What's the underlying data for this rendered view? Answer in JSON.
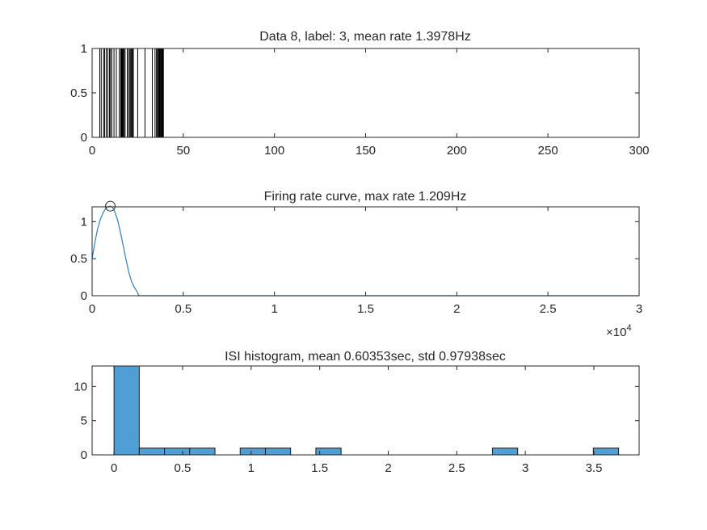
{
  "chart_data": [
    {
      "type": "raster",
      "title": "Data 8, label: 3, mean rate 1.3978Hz",
      "xlim": [
        0,
        300
      ],
      "ylim": [
        0,
        1
      ],
      "xticks": [
        0,
        50,
        100,
        150,
        200,
        250,
        300
      ],
      "xtick_labels": [
        "0",
        "50",
        "100",
        "150",
        "200",
        "250",
        "300"
      ],
      "yticks": [
        0,
        0.5,
        1
      ],
      "ytick_labels": [
        "0",
        "0.5",
        "1"
      ],
      "spike_times": [
        4.2,
        5.0,
        6.3,
        6.9,
        7.8,
        8.6,
        9.5,
        10.1,
        10.8,
        12.0,
        13.3,
        14.9,
        15.7,
        15.9,
        16.1,
        16.3,
        16.6,
        16.8,
        17.0,
        17.5,
        18.1,
        19.3,
        20.0,
        20.7,
        21.2,
        21.6,
        22.1,
        22.3,
        22.6,
        25.0,
        29.0,
        33.0,
        34.5,
        35.3,
        35.6,
        36.2,
        36.6,
        37.0,
        37.4,
        37.8,
        38.2,
        38.5,
        38.8,
        39.1
      ],
      "line_color": "#000000"
    },
    {
      "type": "line",
      "title": "Firing rate curve, max rate 1.209Hz",
      "xlim": [
        0,
        30000
      ],
      "ylim": [
        0,
        1.2
      ],
      "xticks": [
        0,
        5000,
        10000,
        15000,
        20000,
        25000,
        30000
      ],
      "xtick_labels": [
        "0",
        "0.5",
        "1",
        "1.5",
        "2",
        "2.5",
        "3"
      ],
      "x_exponent_label": "×10",
      "x_exponent_power": "4",
      "yticks": [
        0,
        0.5,
        1
      ],
      "ytick_labels": [
        "0",
        "0.5",
        "1"
      ],
      "x": [
        0,
        150,
        300,
        450,
        600,
        750,
        900,
        1000,
        1100,
        1250,
        1400,
        1550,
        1700,
        1850,
        2000,
        2150,
        2300,
        2450,
        2550,
        2600,
        3000,
        5000,
        10000,
        15000,
        20000,
        25000,
        30000
      ],
      "y": [
        0.5,
        0.72,
        0.9,
        1.03,
        1.12,
        1.18,
        1.205,
        1.209,
        1.2,
        1.13,
        1.02,
        0.86,
        0.68,
        0.5,
        0.33,
        0.2,
        0.12,
        0.06,
        0.01,
        0,
        0,
        0,
        0,
        0,
        0,
        0,
        0
      ],
      "peak": {
        "x": 1000,
        "y": 1.209
      },
      "line_color": "#2f7fbf"
    },
    {
      "type": "bar",
      "title": "ISI histogram, mean 0.60353sec, std 0.97938sec",
      "xlim": [
        -0.16,
        3.83
      ],
      "ylim": [
        0,
        13
      ],
      "xticks": [
        0,
        0.5,
        1,
        1.5,
        2,
        2.5,
        3,
        3.5
      ],
      "xtick_labels": [
        "0",
        "0.5",
        "1",
        "1.5",
        "2",
        "2.5",
        "3",
        "3.5"
      ],
      "yticks": [
        0,
        5,
        10
      ],
      "ytick_labels": [
        "0",
        "5",
        "10"
      ],
      "bin_edges": [
        0.0,
        0.184,
        0.368,
        0.552,
        0.736,
        0.92,
        1.104,
        1.288,
        1.472,
        1.656,
        1.84,
        2.024,
        2.208,
        2.392,
        2.576,
        2.76,
        2.944,
        3.128,
        3.312,
        3.496,
        3.68
      ],
      "counts": [
        13,
        1,
        1,
        1,
        0,
        1,
        1,
        0,
        1,
        0,
        0,
        0,
        0,
        0,
        0,
        1,
        0,
        0,
        0,
        1
      ],
      "bar_color": "#4f9fd6"
    }
  ]
}
